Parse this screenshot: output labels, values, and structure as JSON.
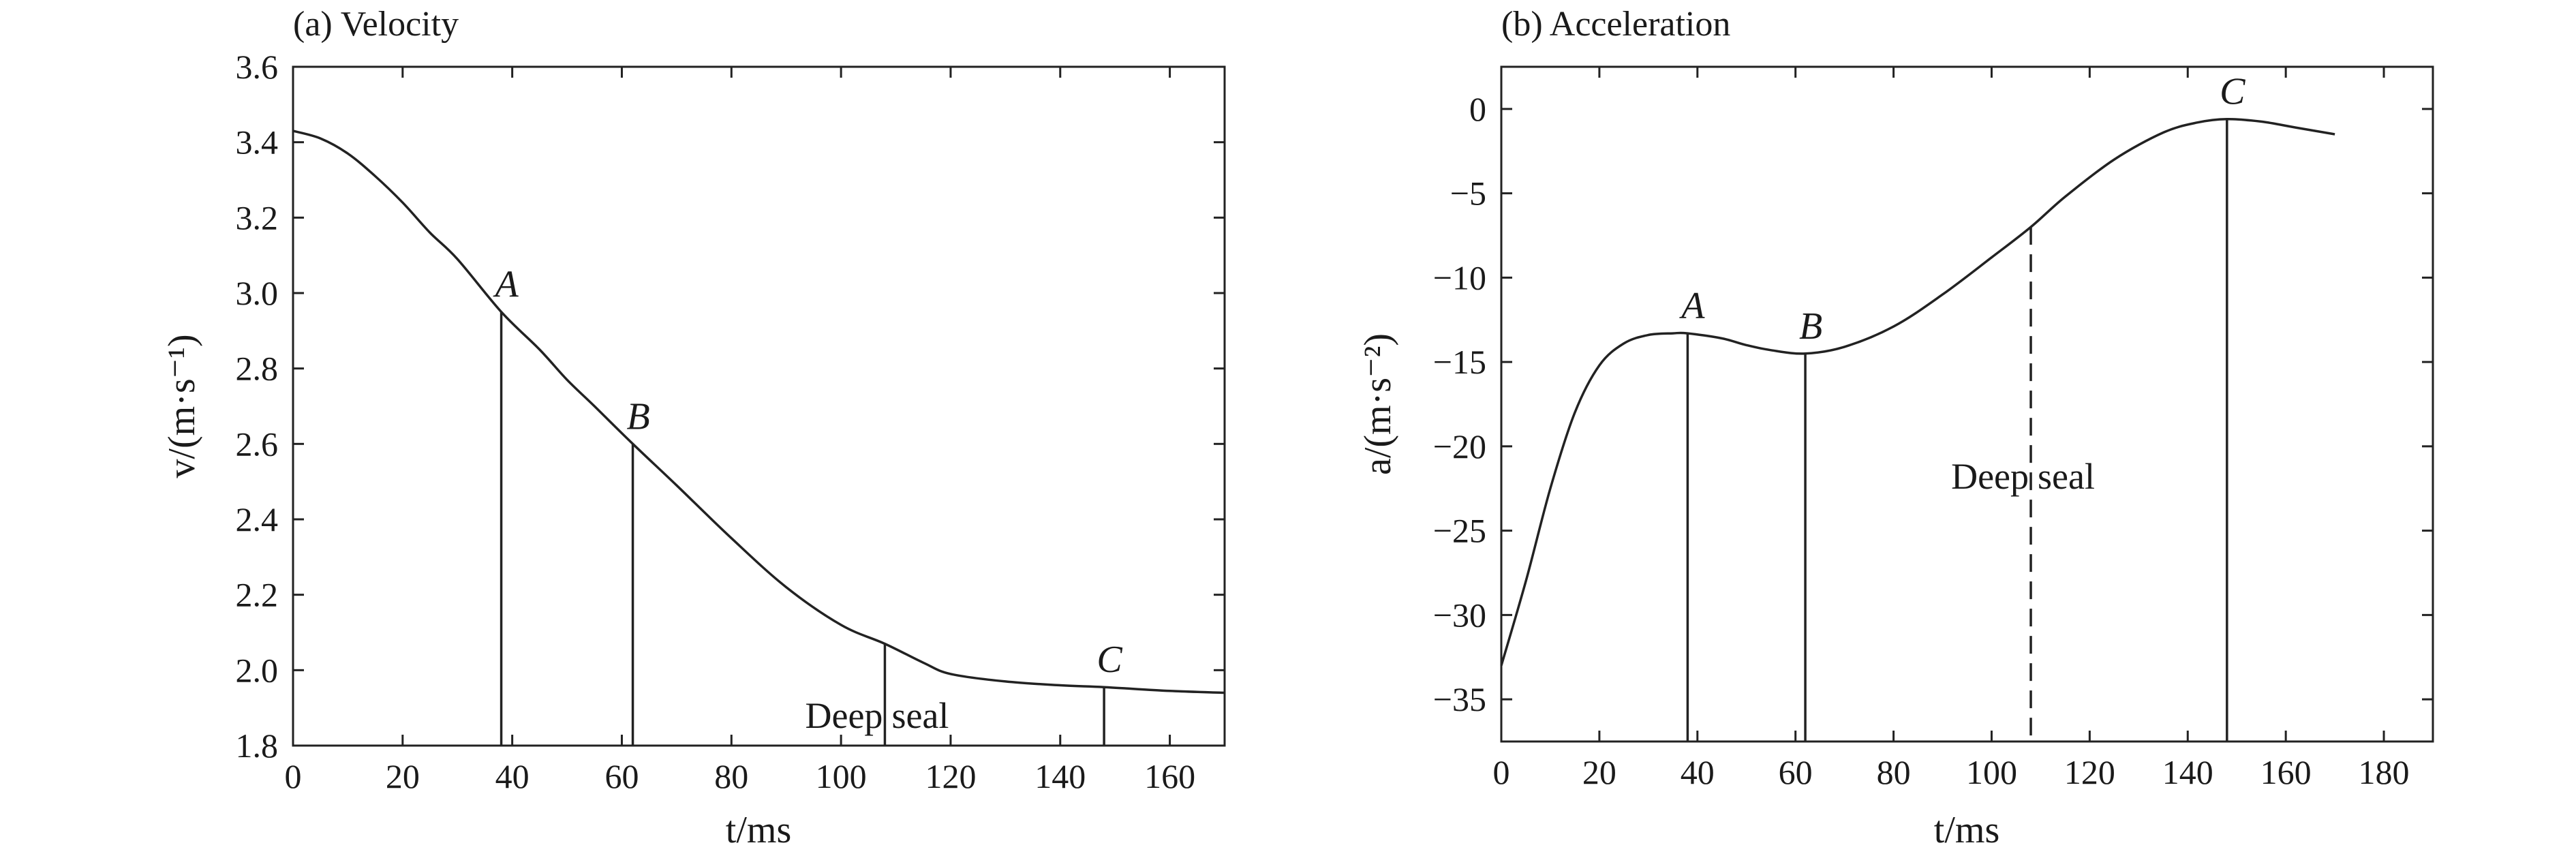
{
  "chart_data": [
    {
      "type": "line",
      "title": "(a) Velocity",
      "xlabel": "t/ms",
      "ylabel": "v/(m·s⁻¹)",
      "xlim": [
        0,
        170
      ],
      "ylim": [
        1.8,
        3.6
      ],
      "xticks": [
        0,
        20,
        40,
        60,
        80,
        100,
        120,
        140,
        160
      ],
      "yticks": [
        "1.8",
        "2.0",
        "2.2",
        "2.4",
        "2.6",
        "2.8",
        "3.0",
        "3.2",
        "3.4",
        "3.6"
      ],
      "series": [
        {
          "x": [
            0,
            5,
            10,
            15,
            20,
            25,
            30,
            38,
            45,
            50,
            55,
            62,
            70,
            80,
            90,
            100,
            108,
            115,
            120,
            130,
            140,
            148,
            160,
            170
          ],
          "y": [
            3.43,
            3.41,
            3.37,
            3.31,
            3.24,
            3.16,
            3.09,
            2.95,
            2.85,
            2.77,
            2.7,
            2.6,
            2.49,
            2.35,
            2.22,
            2.12,
            2.07,
            2.02,
            1.99,
            1.97,
            1.96,
            1.955,
            1.945,
            1.94
          ]
        }
      ],
      "markers": [
        {
          "label": "A",
          "x": 38,
          "y": 2.95,
          "style": "solid"
        },
        {
          "label": "B",
          "x": 62,
          "y": 2.6,
          "style": "solid"
        },
        {
          "label": "C",
          "x": 148,
          "y": 1.955,
          "style": "solid"
        },
        {
          "label": "",
          "x": 108,
          "y": 2.07,
          "style": "solid"
        }
      ],
      "annotation": {
        "left": "Deep",
        "right": "seal",
        "x": 108
      }
    },
    {
      "type": "line",
      "title": "(b) Acceleration",
      "xlabel": "t/ms",
      "ylabel": "a/(m·s⁻²)",
      "xlim": [
        0,
        190
      ],
      "ylim": [
        -37.5,
        2.5
      ],
      "xticks": [
        0,
        20,
        40,
        60,
        80,
        100,
        120,
        140,
        160,
        180
      ],
      "yticks": [
        "-35",
        "-30",
        "-25",
        "-20",
        "-15",
        "-10",
        "-5",
        "0"
      ],
      "series": [
        {
          "x": [
            0,
            5,
            10,
            15,
            20,
            25,
            30,
            35,
            38,
            45,
            50,
            55,
            62,
            70,
            80,
            90,
            100,
            108,
            115,
            125,
            135,
            142,
            148,
            155,
            162,
            170
          ],
          "y": [
            -33,
            -28,
            -22.5,
            -18,
            -15.2,
            -13.9,
            -13.4,
            -13.3,
            -13.3,
            -13.6,
            -14.0,
            -14.3,
            -14.5,
            -14.1,
            -12.9,
            -11.0,
            -8.8,
            -7.0,
            -5.2,
            -3.0,
            -1.4,
            -0.8,
            -0.6,
            -0.75,
            -1.1,
            -1.5
          ]
        }
      ],
      "markers": [
        {
          "label": "A",
          "x": 38,
          "y": -13.3,
          "style": "solid"
        },
        {
          "label": "B",
          "x": 62,
          "y": -14.5,
          "style": "solid"
        },
        {
          "label": "C",
          "x": 148,
          "y": -0.6,
          "style": "solid"
        },
        {
          "label": "",
          "x": 108,
          "y": -7.0,
          "style": "dashed"
        }
      ],
      "annotation": {
        "left": "Deep",
        "right": "seal",
        "x": 108
      }
    }
  ]
}
